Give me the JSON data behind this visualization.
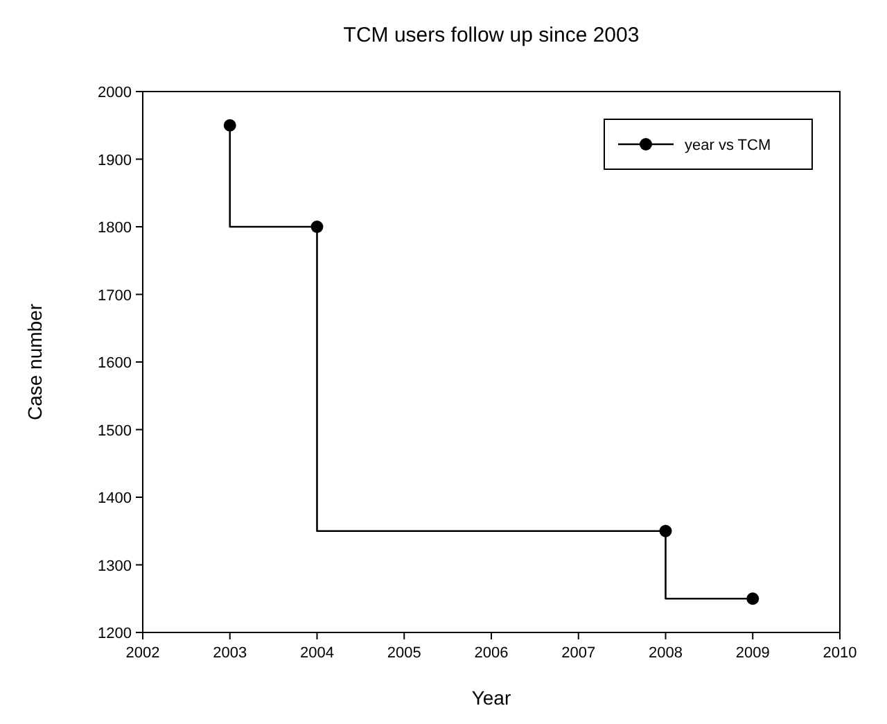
{
  "chart_data": {
    "type": "step",
    "title": "TCM users follow up since 2003",
    "xlabel": "Year",
    "ylabel": "Case number",
    "x": [
      2003,
      2004,
      2008,
      2009
    ],
    "series": [
      {
        "name": "year vs TCM",
        "color": "#000000",
        "values": [
          1950,
          1800,
          1350,
          1250
        ]
      }
    ],
    "xlim": [
      2002,
      2010
    ],
    "xticks": [
      2002,
      2003,
      2004,
      2005,
      2006,
      2007,
      2008,
      2009,
      2010
    ],
    "ylim": [
      1200,
      2000
    ],
    "yticks": [
      1200,
      1300,
      1400,
      1500,
      1600,
      1700,
      1800,
      1900,
      2000
    ],
    "grid": false,
    "legend": "top right",
    "marker": "circle",
    "line_style": "solid"
  }
}
